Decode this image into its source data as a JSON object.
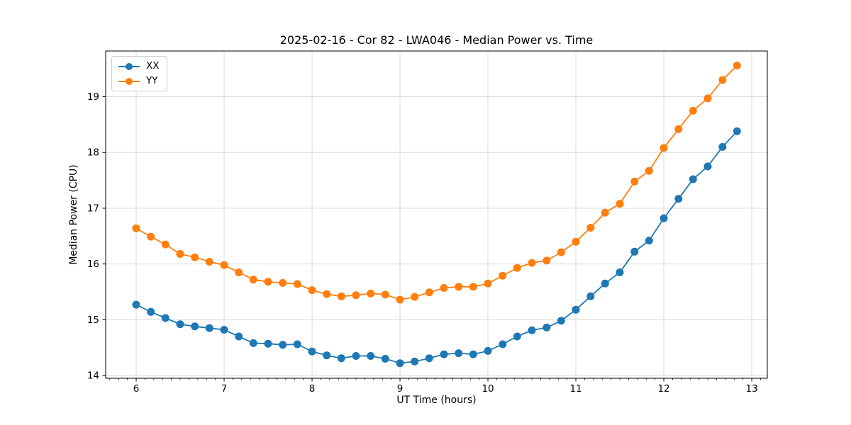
{
  "chart_data": {
    "type": "line",
    "title": "2025-02-16 - Cor 82 - LWA046 - Median Power vs. Time",
    "xlabel": "UT Time (hours)",
    "ylabel": "Median Power (CPU)",
    "xlim": [
      5.653,
      13.177
    ],
    "ylim": [
      13.95,
      19.82
    ],
    "x_ticks": [
      6,
      7,
      8,
      9,
      10,
      11,
      12,
      13
    ],
    "y_ticks": [
      14,
      15,
      16,
      17,
      18,
      19
    ],
    "x_minor_step": 0.1,
    "grid": true,
    "grid_color": "#dcdcdc",
    "spine_color": "#000000",
    "legend_position": "upper-left",
    "x": [
      6.0,
      6.167,
      6.333,
      6.5,
      6.667,
      6.833,
      7.0,
      7.167,
      7.333,
      7.5,
      7.667,
      7.833,
      8.0,
      8.167,
      8.333,
      8.5,
      8.667,
      8.833,
      9.0,
      9.167,
      9.333,
      9.5,
      9.667,
      9.833,
      10.0,
      10.167,
      10.333,
      10.5,
      10.667,
      10.833,
      11.0,
      11.167,
      11.333,
      11.5,
      11.667,
      11.833,
      12.0,
      12.167,
      12.333,
      12.5,
      12.667,
      12.833
    ],
    "series": [
      {
        "name": "XX",
        "color": "#1f77b4",
        "values": [
          15.27,
          15.14,
          15.03,
          14.92,
          14.88,
          14.85,
          14.82,
          14.7,
          14.58,
          14.57,
          14.55,
          14.56,
          14.43,
          14.36,
          14.31,
          14.35,
          14.35,
          14.3,
          14.22,
          14.25,
          14.31,
          14.38,
          14.4,
          14.38,
          14.44,
          14.56,
          14.7,
          14.81,
          14.86,
          14.98,
          15.18,
          15.42,
          15.65,
          15.85,
          16.22,
          16.42,
          16.82,
          17.17,
          17.52,
          17.75,
          18.1,
          18.38
        ]
      },
      {
        "name": "YY",
        "color": "#ff7f0e",
        "values": [
          16.64,
          16.49,
          16.35,
          16.18,
          16.12,
          16.04,
          15.98,
          15.85,
          15.72,
          15.68,
          15.66,
          15.64,
          15.53,
          15.46,
          15.42,
          15.44,
          15.47,
          15.45,
          15.36,
          15.41,
          15.49,
          15.57,
          15.59,
          15.59,
          15.65,
          15.79,
          15.93,
          16.02,
          16.06,
          16.21,
          16.4,
          16.65,
          16.92,
          17.08,
          17.48,
          17.67,
          18.08,
          18.42,
          18.75,
          18.97,
          19.3,
          19.56
        ]
      }
    ]
  }
}
